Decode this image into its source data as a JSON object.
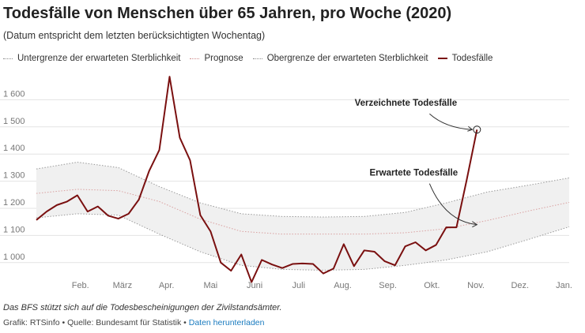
{
  "header": {
    "title": "Todesfälle von Menschen über 65 Jahren, pro Woche (2020)",
    "subtitle": "(Datum entspricht dem letzten berücksichtigten Wochentag)"
  },
  "legend": {
    "items": [
      {
        "label": "Untergrenze der erwarteten Sterblichkeit"
      },
      {
        "label": "Prognose"
      },
      {
        "label": "Obergrenze der erwarteten Sterblichkeit"
      },
      {
        "label": "Todesfälle"
      }
    ]
  },
  "footer": {
    "note": "Das BFS stützt sich auf die Todesbescheinigungen der Zivilstandsämter.",
    "credit": "Grafik: RTSinfo • Quelle: Bundesamt für Statistik • ",
    "download_link": "Daten herunterladen"
  },
  "colors": {
    "deaths": "#7a1010",
    "forecast": "#d9a0a0",
    "bounds": "#999999",
    "band_fill": "#f0f0f0",
    "grid": "#e3e3e3"
  },
  "chart_data": {
    "type": "line",
    "x_unit": "calendar week 2020",
    "x_ticks": [
      {
        "x": 5.3,
        "label": "Feb."
      },
      {
        "x": 9.4,
        "label": "März"
      },
      {
        "x": 13.7,
        "label": "Apr."
      },
      {
        "x": 18.0,
        "label": "Mai"
      },
      {
        "x": 22.3,
        "label": "Juni"
      },
      {
        "x": 26.6,
        "label": "Juli"
      },
      {
        "x": 30.9,
        "label": "Aug."
      },
      {
        "x": 35.3,
        "label": "Sep."
      },
      {
        "x": 39.6,
        "label": "Okt."
      },
      {
        "x": 43.9,
        "label": "Nov."
      },
      {
        "x": 48.2,
        "label": "Dez."
      },
      {
        "x": 52.5,
        "label": "Jan."
      }
    ],
    "y_ticks": [
      {
        "value": 1000,
        "label": "1 000"
      },
      {
        "value": 1100,
        "label": "1 100"
      },
      {
        "value": 1200,
        "label": "1 200"
      },
      {
        "value": 1300,
        "label": "1 300"
      },
      {
        "value": 1400,
        "label": "1 400"
      },
      {
        "value": 1500,
        "label": "1 500"
      },
      {
        "value": 1600,
        "label": "1 600"
      }
    ],
    "xlim": [
      1,
      53
    ],
    "ylim": [
      950,
      1700
    ],
    "grid": true,
    "annotations": [
      {
        "text": "Verzeichnete Todesfälle",
        "x": 44,
        "y": 1490
      },
      {
        "text": "Erwartete Todesfälle",
        "x": 44,
        "y": 1140
      }
    ],
    "series": [
      {
        "name": "Todesfälle",
        "x": [
          1,
          2,
          3,
          4,
          5,
          6,
          7,
          8,
          9,
          10,
          11,
          12,
          13,
          14,
          15,
          16,
          17,
          18,
          19,
          20,
          21,
          22,
          23,
          24,
          25,
          26,
          27,
          28,
          29,
          30,
          31,
          32,
          33,
          34,
          35,
          36,
          37,
          38,
          39,
          40,
          41,
          42,
          43,
          44
        ],
        "y": [
          1157,
          1188,
          1212,
          1225,
          1248,
          1188,
          1207,
          1173,
          1162,
          1180,
          1232,
          1337,
          1415,
          1685,
          1460,
          1377,
          1175,
          1115,
          1000,
          970,
          1030,
          928,
          1010,
          993,
          980,
          995,
          997,
          995,
          960,
          978,
          1068,
          987,
          1045,
          1040,
          1005,
          990,
          1060,
          1075,
          1045,
          1065,
          1130,
          1130,
          1305,
          1490
        ]
      },
      {
        "name": "Prognose",
        "x": [
          1,
          5,
          9,
          13,
          17,
          21,
          25,
          29,
          33,
          37,
          41,
          45,
          49,
          53
        ],
        "y": [
          1255,
          1270,
          1265,
          1225,
          1160,
          1115,
          1105,
          1105,
          1105,
          1110,
          1125,
          1155,
          1190,
          1222
        ]
      },
      {
        "name": "Obergrenze der erwarteten Sterblichkeit",
        "x": [
          1,
          5,
          9,
          13,
          17,
          21,
          25,
          29,
          33,
          37,
          41,
          45,
          49,
          53
        ],
        "y": [
          1345,
          1370,
          1350,
          1280,
          1220,
          1180,
          1170,
          1168,
          1170,
          1185,
          1220,
          1260,
          1285,
          1312
        ]
      },
      {
        "name": "Untergrenze der erwarteten Sterblichkeit",
        "x": [
          1,
          5,
          9,
          13,
          17,
          21,
          25,
          29,
          33,
          37,
          41,
          45,
          49,
          53
        ],
        "y": [
          1165,
          1180,
          1175,
          1105,
          1040,
          990,
          975,
          972,
          975,
          990,
          1010,
          1040,
          1085,
          1132
        ]
      }
    ]
  }
}
